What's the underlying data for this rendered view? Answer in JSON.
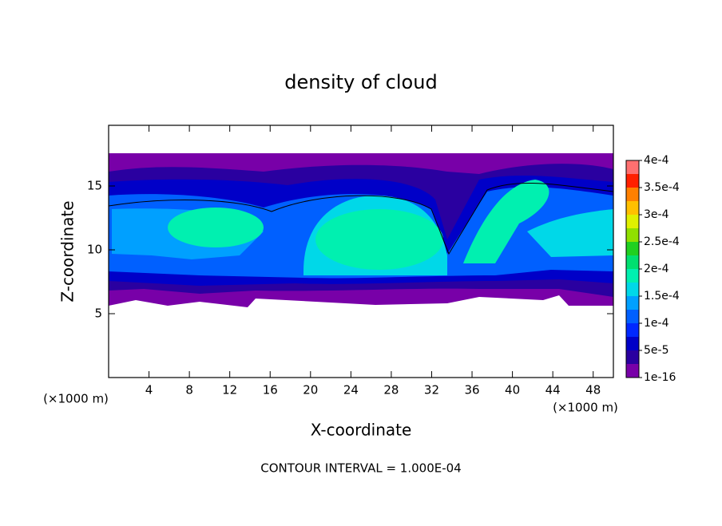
{
  "chart_data": {
    "type": "contour",
    "title": "density of cloud",
    "x_label": "X-coordinate",
    "y_label": "Z-coordinate",
    "x_unit": "(×1000 m)",
    "y_unit": "(×1000 m)",
    "footer": "CONTOUR INTERVAL = 1.000E-04",
    "xlim": [
      0,
      50
    ],
    "xticks": [
      4,
      8,
      12,
      16,
      20,
      24,
      28,
      32,
      36,
      40,
      44,
      48
    ],
    "ylim": [
      0,
      19.75
    ],
    "yticks": [
      5,
      10,
      15
    ],
    "colorbar": {
      "lim": [
        1e-16,
        0.0004
      ],
      "ticks": [
        1e-16,
        {
          "value": 5e-05,
          "label": "5e-5"
        },
        {
          "value": 0.0001,
          "label": "1e-4"
        },
        {
          "value": 0.00015,
          "label": "1.5e-4"
        },
        {
          "value": 0.0002,
          "label": "2e-4"
        },
        {
          "value": 0.00025,
          "label": "2.5e-4"
        },
        {
          "value": 0.0003,
          "label": "3e-4"
        },
        {
          "value": 0.00035,
          "label": "3.5e-4"
        },
        {
          "value": 0.0004,
          "label": "4e-4"
        }
      ],
      "colors": [
        "#7800a8",
        "#2a00a0",
        "#0000c8",
        "#0028ff",
        "#0060ff",
        "#00a0ff",
        "#00d8e8",
        "#00f0b0",
        "#00e070",
        "#20d020",
        "#90e000",
        "#e0f000",
        "#ffc000",
        "#ff8000",
        "#ff2000",
        "#ff7070"
      ]
    }
  }
}
